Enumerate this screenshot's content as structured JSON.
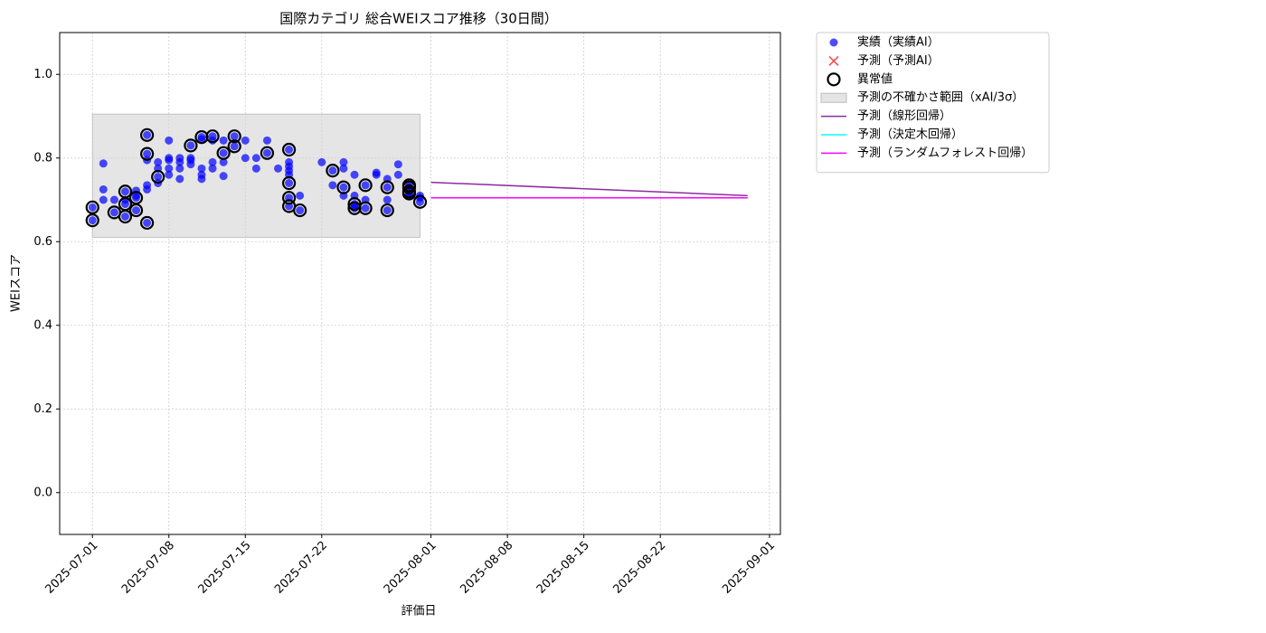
{
  "chart_data": {
    "type": "scatter",
    "title": "国際カテゴリ 総合WEIスコア推移（30日間）",
    "xlabel": "評価日",
    "ylabel": "WEIスコア",
    "xlim": [
      "2025-06-28",
      "2025-09-02"
    ],
    "ylim": [
      -0.1,
      1.1
    ],
    "xticks": [
      "2025-07-01",
      "2025-07-08",
      "2025-07-15",
      "2025-07-22",
      "2025-08-01",
      "2025-08-08",
      "2025-08-15",
      "2025-08-22",
      "2025-09-01"
    ],
    "yticks": [
      {
        "value": 0,
        "label": "0.0"
      },
      {
        "value": 0.2,
        "label": "0.2"
      },
      {
        "value": 0.4,
        "label": "0.4"
      },
      {
        "value": 0.6,
        "label": "0.6"
      },
      {
        "value": 0.8,
        "label": "0.8"
      },
      {
        "value": 1,
        "label": "1.0"
      }
    ],
    "grid": true,
    "legend": "outside-right",
    "series": [
      {
        "name": "実績（実績AI）",
        "type": "scatter",
        "marker": "dot",
        "color": "#0000ff",
        "x": [
          "2025-07-01",
          "2025-07-01",
          "2025-07-02",
          "2025-07-02",
          "2025-07-02",
          "2025-07-03",
          "2025-07-03",
          "2025-07-04",
          "2025-07-04",
          "2025-07-04",
          "2025-07-04",
          "2025-07-05",
          "2025-07-05",
          "2025-07-05",
          "2025-07-05",
          "2025-07-06",
          "2025-07-06",
          "2025-07-06",
          "2025-07-06",
          "2025-07-06",
          "2025-07-06",
          "2025-07-07",
          "2025-07-07",
          "2025-07-07",
          "2025-07-07",
          "2025-07-08",
          "2025-07-08",
          "2025-07-08",
          "2025-07-08",
          "2025-07-08",
          "2025-07-09",
          "2025-07-09",
          "2025-07-09",
          "2025-07-09",
          "2025-07-10",
          "2025-07-10",
          "2025-07-10",
          "2025-07-10",
          "2025-07-11",
          "2025-07-11",
          "2025-07-11",
          "2025-07-11",
          "2025-07-11",
          "2025-07-12",
          "2025-07-12",
          "2025-07-12",
          "2025-07-12",
          "2025-07-13",
          "2025-07-13",
          "2025-07-13",
          "2025-07-13",
          "2025-07-14",
          "2025-07-14",
          "2025-07-15",
          "2025-07-15",
          "2025-07-16",
          "2025-07-16",
          "2025-07-17",
          "2025-07-17",
          "2025-07-18",
          "2025-07-19",
          "2025-07-19",
          "2025-07-19",
          "2025-07-19",
          "2025-07-19",
          "2025-07-19",
          "2025-07-19",
          "2025-07-19",
          "2025-07-20",
          "2025-07-20",
          "2025-07-22",
          "2025-07-23",
          "2025-07-23",
          "2025-07-24",
          "2025-07-24",
          "2025-07-24",
          "2025-07-24",
          "2025-07-25",
          "2025-07-25",
          "2025-07-25",
          "2025-07-25",
          "2025-07-25",
          "2025-07-26",
          "2025-07-26",
          "2025-07-26",
          "2025-07-27",
          "2025-07-27",
          "2025-07-28",
          "2025-07-28",
          "2025-07-28",
          "2025-07-28",
          "2025-07-29",
          "2025-07-29",
          "2025-07-30",
          "2025-07-30",
          "2025-07-30",
          "2025-07-30",
          "2025-07-30",
          "2025-07-31",
          "2025-07-31",
          "2025-07-31"
        ],
        "values": [
          0.682,
          0.651,
          0.7,
          0.725,
          0.787,
          0.7,
          0.67,
          0.72,
          0.7,
          0.66,
          0.69,
          0.705,
          0.71,
          0.675,
          0.722,
          0.735,
          0.645,
          0.81,
          0.855,
          0.795,
          0.725,
          0.755,
          0.775,
          0.79,
          0.74,
          0.775,
          0.76,
          0.842,
          0.8,
          0.795,
          0.75,
          0.775,
          0.8,
          0.79,
          0.83,
          0.8,
          0.785,
          0.795,
          0.75,
          0.775,
          0.76,
          0.85,
          0.845,
          0.852,
          0.79,
          0.775,
          0.842,
          0.842,
          0.79,
          0.812,
          0.757,
          0.852,
          0.828,
          0.842,
          0.8,
          0.8,
          0.775,
          0.812,
          0.842,
          0.775,
          0.82,
          0.705,
          0.74,
          0.685,
          0.79,
          0.77,
          0.76,
          0.78,
          0.675,
          0.71,
          0.79,
          0.77,
          0.735,
          0.79,
          0.73,
          0.775,
          0.71,
          0.68,
          0.69,
          0.76,
          0.71,
          0.685,
          0.735,
          0.68,
          0.7,
          0.76,
          0.765,
          0.73,
          0.675,
          0.75,
          0.7,
          0.785,
          0.76,
          0.715,
          0.73,
          0.72,
          0.735,
          0.71,
          0.705,
          0.695,
          0.71
        ]
      },
      {
        "name": "予測（予測AI）",
        "type": "scatter",
        "marker": "cross",
        "color": "#ff0000",
        "x": [],
        "values": []
      },
      {
        "name": "異常値",
        "type": "scatter",
        "marker": "ring",
        "color": "#000000",
        "x": [
          "2025-07-01",
          "2025-07-01",
          "2025-07-03",
          "2025-07-04",
          "2025-07-04",
          "2025-07-04",
          "2025-07-05",
          "2025-07-05",
          "2025-07-06",
          "2025-07-06",
          "2025-07-06",
          "2025-07-07",
          "2025-07-10",
          "2025-07-11",
          "2025-07-12",
          "2025-07-13",
          "2025-07-14",
          "2025-07-14",
          "2025-07-17",
          "2025-07-19",
          "2025-07-19",
          "2025-07-19",
          "2025-07-19",
          "2025-07-20",
          "2025-07-23",
          "2025-07-24",
          "2025-07-25",
          "2025-07-25",
          "2025-07-26",
          "2025-07-26",
          "2025-07-28",
          "2025-07-28",
          "2025-07-30",
          "2025-07-30",
          "2025-07-30",
          "2025-07-30",
          "2025-07-31"
        ],
        "values": [
          0.682,
          0.651,
          0.67,
          0.72,
          0.66,
          0.69,
          0.705,
          0.675,
          0.645,
          0.81,
          0.855,
          0.755,
          0.83,
          0.85,
          0.852,
          0.812,
          0.852,
          0.828,
          0.812,
          0.82,
          0.705,
          0.74,
          0.685,
          0.675,
          0.77,
          0.73,
          0.68,
          0.69,
          0.735,
          0.68,
          0.73,
          0.675,
          0.715,
          0.73,
          0.72,
          0.735,
          0.695
        ]
      },
      {
        "name": "予測の不確かさ範囲（xAI/3σ）",
        "type": "band",
        "color": "#d3d3d3",
        "x": [
          "2025-07-01",
          "2025-07-31"
        ],
        "lower": [
          0.61,
          0.61
        ],
        "upper": [
          0.905,
          0.905
        ]
      },
      {
        "name": "予測（線形回帰）",
        "type": "line",
        "color": "#8e2ba0",
        "x": [
          "2025-08-01",
          "2025-08-30"
        ],
        "values": [
          0.742,
          0.71
        ]
      },
      {
        "name": "予測（決定木回帰）",
        "type": "line",
        "color": "#00ffff",
        "x": [
          "2025-08-01",
          "2025-08-30"
        ],
        "values": [
          0.705,
          0.705
        ]
      },
      {
        "name": "予測（ランダムフォレスト回帰）",
        "type": "line",
        "color": "#ff00ff",
        "x": [
          "2025-08-01",
          "2025-08-30"
        ],
        "values": [
          0.705,
          0.705
        ]
      }
    ]
  }
}
